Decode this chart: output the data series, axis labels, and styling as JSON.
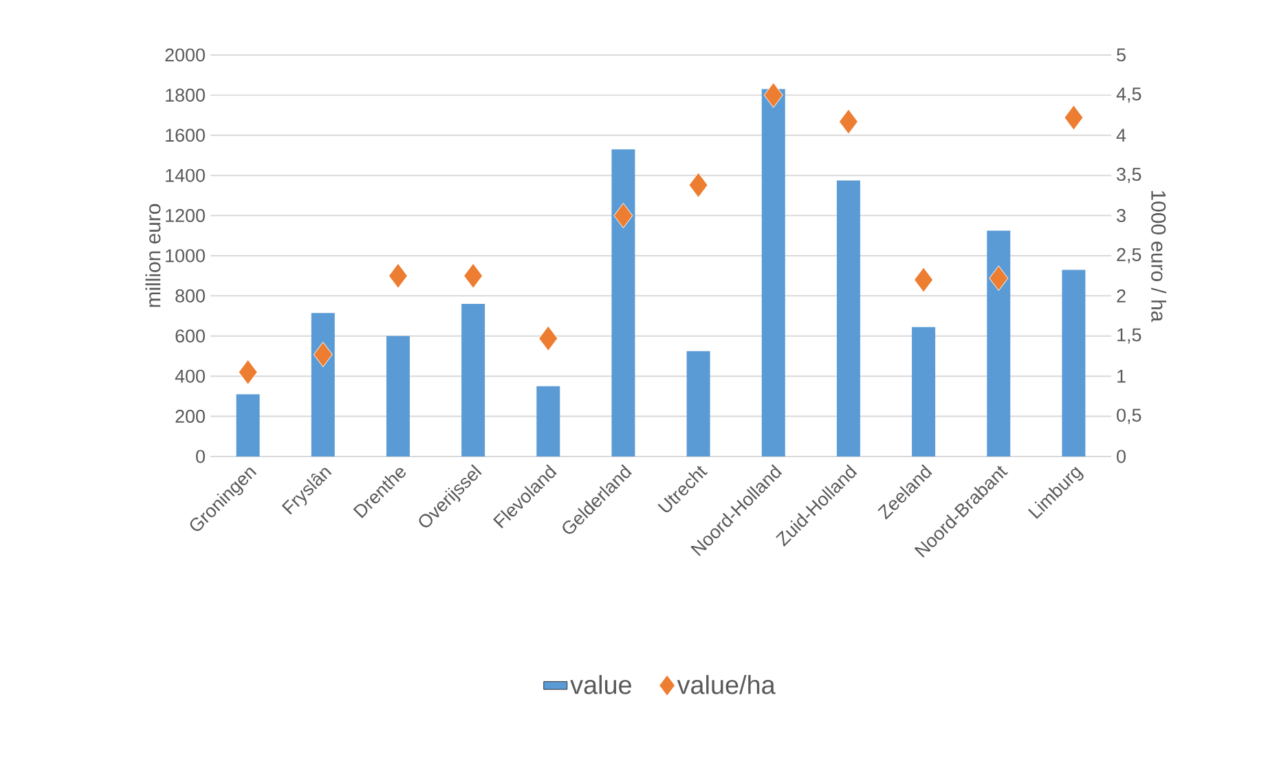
{
  "chart_data": {
    "type": "bar",
    "ylabel": "million euro",
    "y2label": "1000 euro / ha",
    "categories": [
      "Groningen",
      "Fryslân",
      "Drenthe",
      "Overijssel",
      "Flevoland",
      "Gelderland",
      "Utrecht",
      "Noord-Holland",
      "Zuid-Holland",
      "Zeeland",
      "Noord-Brabant",
      "Limburg"
    ],
    "series": [
      {
        "name": "value",
        "color": "#5b9bd5",
        "values": [
          310,
          715,
          600,
          760,
          350,
          1530,
          525,
          1830,
          1375,
          645,
          1125,
          930
        ]
      },
      {
        "name": "value/ha",
        "type": "scatter",
        "axis": "y2",
        "marker": "diamond",
        "color": "#ed7d31",
        "values": [
          1.05,
          1.27,
          2.25,
          2.25,
          1.47,
          3.0,
          3.38,
          4.5,
          4.17,
          2.2,
          2.22,
          4.22
        ]
      }
    ],
    "ylim": [
      0,
      2000
    ],
    "yticks": [
      0,
      200,
      400,
      600,
      800,
      1000,
      1200,
      1400,
      1600,
      1800,
      2000
    ],
    "y2lim": [
      0,
      5
    ],
    "y2ticks": [
      0,
      {
        "value": 0.5,
        "label": "0,5"
      },
      1,
      {
        "value": 1.5,
        "label": "1,5"
      },
      2,
      {
        "value": 2.5,
        "label": "2,5"
      },
      3,
      {
        "value": 3.5,
        "label": "3,5"
      },
      4,
      {
        "value": 4.5,
        "label": "4,5"
      },
      5
    ],
    "grid": "y",
    "legend": "bottom"
  }
}
